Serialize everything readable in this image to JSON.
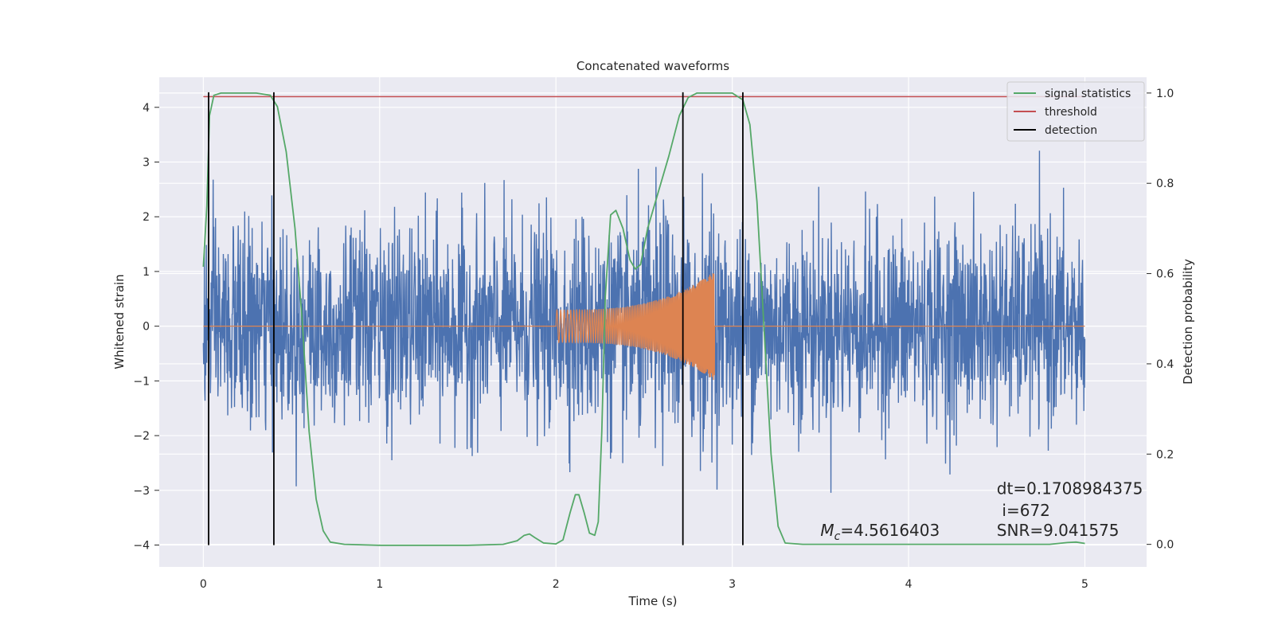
{
  "chart_data": {
    "type": "line",
    "title": "Concatenated waveforms",
    "xlabel": "Time (s)",
    "ylabel": "Whitened strain",
    "y2label": "Detection probability",
    "xlim": [
      -0.25,
      5.35
    ],
    "ylim": [
      -4.4,
      4.55
    ],
    "y2lim": [
      -0.05,
      1.035
    ],
    "x_ticks": [
      0,
      1,
      2,
      3,
      4,
      5
    ],
    "y_ticks": [
      -4,
      -3,
      -2,
      -1,
      0,
      1,
      2,
      3,
      4
    ],
    "y2_ticks": [
      0.0,
      0.2,
      0.4,
      0.6,
      0.8,
      1.0
    ],
    "grid": true,
    "legend_position": "top-right",
    "legend": [
      {
        "label": "signal statistics",
        "color": "#55a868"
      },
      {
        "label": "threshold",
        "color": "#c44e52"
      },
      {
        "label": "detection",
        "color": "#000000"
      }
    ],
    "series": [
      {
        "key": "whitened",
        "color": "#4c72b0",
        "x_range": [
          0,
          5
        ],
        "noise_sigma": 0.9,
        "noise_peak_max": 3.9
      },
      {
        "key": "injected",
        "color": "#dd8452",
        "chirp_start": 2.0,
        "chirp_end": 2.9,
        "amplitude_start": 0.3,
        "amplitude_end": 1.0
      },
      {
        "name": "signal statistics",
        "axis": "right",
        "color": "#55a868",
        "points": [
          [
            0.0,
            0.615
          ],
          [
            0.02,
            0.75
          ],
          [
            0.035,
            0.95
          ],
          [
            0.06,
            0.995
          ],
          [
            0.1,
            1.0
          ],
          [
            0.3,
            1.0
          ],
          [
            0.38,
            0.995
          ],
          [
            0.42,
            0.97
          ],
          [
            0.47,
            0.87
          ],
          [
            0.52,
            0.7
          ],
          [
            0.56,
            0.5
          ],
          [
            0.6,
            0.25
          ],
          [
            0.64,
            0.1
          ],
          [
            0.68,
            0.03
          ],
          [
            0.72,
            0.005
          ],
          [
            0.8,
            0.0
          ],
          [
            1.0,
            -0.002
          ],
          [
            1.5,
            -0.002
          ],
          [
            1.7,
            0.0
          ],
          [
            1.78,
            0.008
          ],
          [
            1.82,
            0.02
          ],
          [
            1.85,
            0.023
          ],
          [
            1.88,
            0.015
          ],
          [
            1.93,
            0.003
          ],
          [
            2.0,
            0.001
          ],
          [
            2.04,
            0.01
          ],
          [
            2.08,
            0.07
          ],
          [
            2.11,
            0.11
          ],
          [
            2.13,
            0.11
          ],
          [
            2.16,
            0.07
          ],
          [
            2.19,
            0.025
          ],
          [
            2.22,
            0.02
          ],
          [
            2.24,
            0.05
          ],
          [
            2.26,
            0.25
          ],
          [
            2.28,
            0.55
          ],
          [
            2.31,
            0.73
          ],
          [
            2.34,
            0.74
          ],
          [
            2.38,
            0.7
          ],
          [
            2.42,
            0.63
          ],
          [
            2.45,
            0.61
          ],
          [
            2.48,
            0.62
          ],
          [
            2.52,
            0.7
          ],
          [
            2.58,
            0.78
          ],
          [
            2.64,
            0.86
          ],
          [
            2.7,
            0.95
          ],
          [
            2.75,
            0.99
          ],
          [
            2.8,
            1.0
          ],
          [
            3.0,
            1.0
          ],
          [
            3.06,
            0.985
          ],
          [
            3.1,
            0.93
          ],
          [
            3.14,
            0.76
          ],
          [
            3.18,
            0.48
          ],
          [
            3.22,
            0.2
          ],
          [
            3.26,
            0.04
          ],
          [
            3.3,
            0.003
          ],
          [
            3.4,
            0.0
          ],
          [
            4.8,
            0.0
          ],
          [
            4.9,
            0.004
          ],
          [
            4.95,
            0.005
          ],
          [
            5.0,
            0.002
          ]
        ]
      },
      {
        "name": "threshold",
        "axis": "right",
        "color": "#c44e52",
        "points": [
          [
            0.0,
            0.992
          ],
          [
            5.0,
            0.992
          ]
        ]
      }
    ],
    "detections": [
      0.03,
      0.4,
      2.72,
      3.06
    ],
    "annotations": [
      {
        "text": "=4.5616403",
        "symbol": "M",
        "subscript": "c",
        "x": 3.5,
        "y": -3.83
      },
      {
        "text": "dt=0.1708984375",
        "x": 4.5,
        "y": -3.07
      },
      {
        "text": "i=672",
        "x": 4.53,
        "y": -3.47
      },
      {
        "text": "SNR=9.041575",
        "x": 4.5,
        "y": -3.83
      }
    ]
  }
}
